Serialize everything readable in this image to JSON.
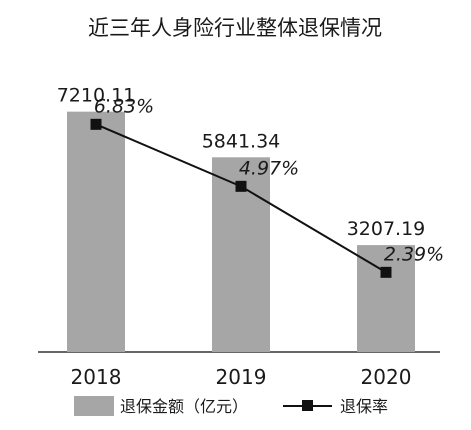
{
  "chart_data": {
    "type": "bar",
    "title": "近三年人身险行业整体退保情况",
    "categories": [
      "2018",
      "2019",
      "2020"
    ],
    "series": [
      {
        "name": "退保金额（亿元）",
        "type": "bar",
        "values": [
          7210.11,
          5841.34,
          3207.19
        ],
        "labels": [
          "7210.11",
          "5841.34",
          "3207.19"
        ]
      },
      {
        "name": "退保率",
        "type": "line",
        "values": [
          6.83,
          4.97,
          2.39
        ],
        "labels": [
          "6.83%",
          "4.97%",
          "2.39%"
        ]
      }
    ],
    "bar_ylim": [
      0,
      9000
    ],
    "line_ylim": [
      0,
      9
    ],
    "xlabel": "",
    "ylabel": "",
    "grid": false,
    "legend_position": "bottom",
    "colors": {
      "bar": "#a6a6a6",
      "line": "#111111",
      "marker": "#111111",
      "axis": "#333333"
    }
  }
}
